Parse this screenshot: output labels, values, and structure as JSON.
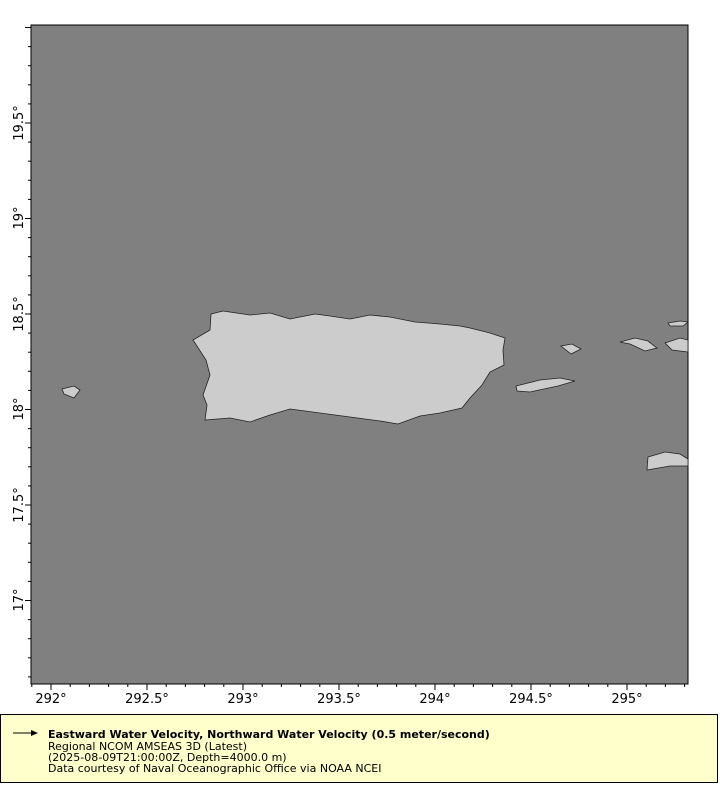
{
  "map": {
    "ocean_color": "#808080",
    "land_color": "#cccccc",
    "x_ticks": [
      "292°",
      "292.5°",
      "293°",
      "293.5°",
      "294°",
      "294.5°",
      "295°"
    ],
    "y_ticks": [
      "19.5°",
      "19°",
      "18.5°",
      "18°",
      "17.5°",
      "17°"
    ]
  },
  "legend": {
    "icon": "arrow-right-icon",
    "background": "#ffffcc",
    "title": "Eastward Water Velocity, Northward Water Velocity (0.5 meter/second)",
    "dataset": "Regional NCOM AMSEAS 3D (Latest)",
    "time_depth": "(2025-08-09T21:00:00Z, Depth=4000.0 m)",
    "credit": "Data courtesy of Naval Oceanographic Office via NOAA NCEI"
  }
}
